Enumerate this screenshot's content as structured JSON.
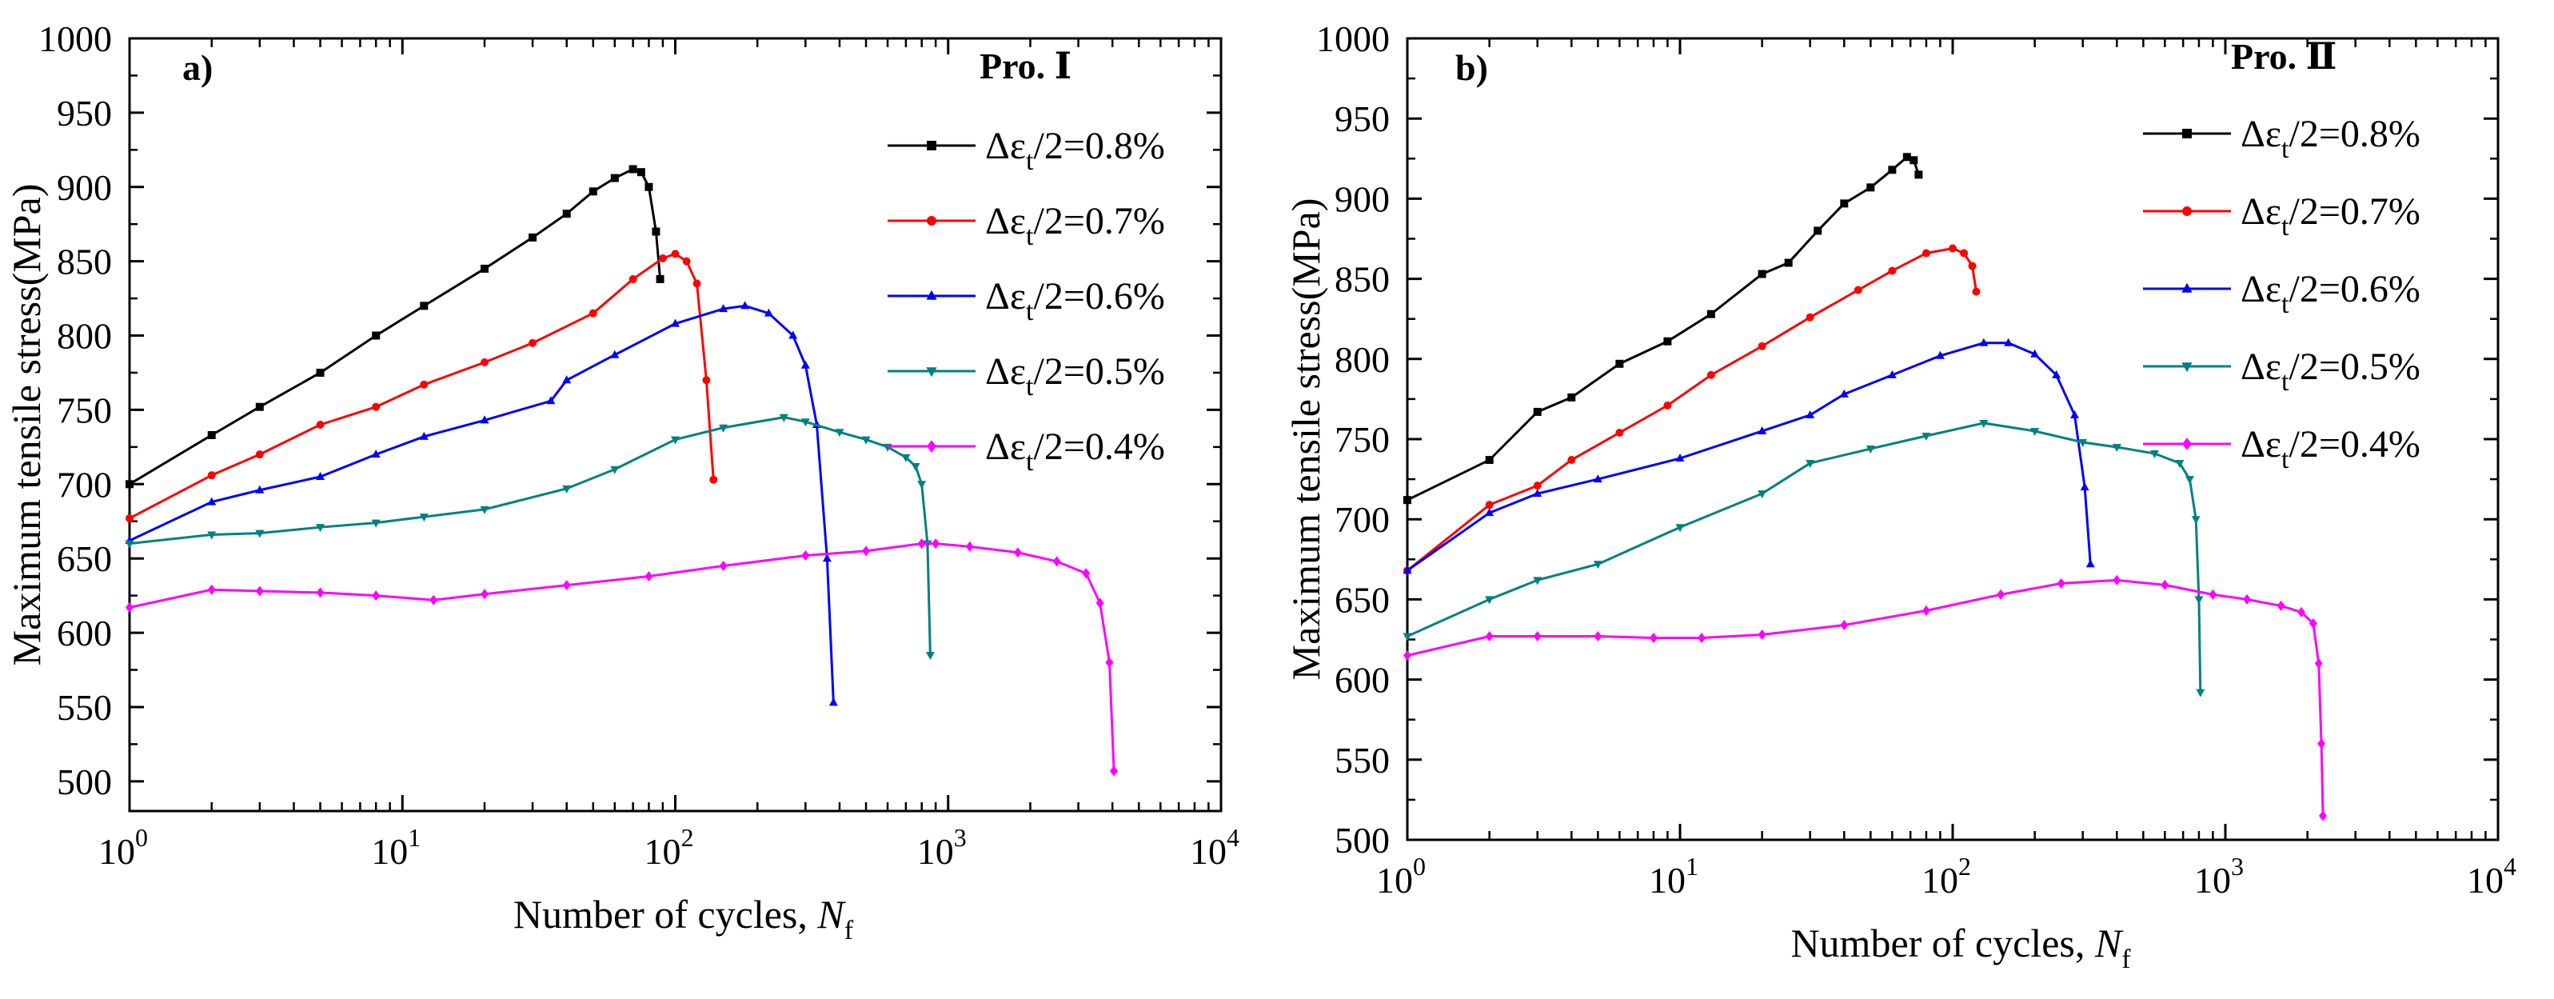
{
  "chart_data": [
    {
      "type": "line",
      "panel_label": "a)",
      "legend_title": "Pro. Ⅰ",
      "legend_placement": "top-right",
      "xlabel": "Number of cycles, N_f",
      "xlabel_main": "Number of cycles, ",
      "xlabel_italic": "N",
      "xlabel_sub": "f",
      "ylabel": "Maximum tensile stress(MPa)",
      "xscale": "log",
      "xlim": [
        1,
        10000
      ],
      "ylim": [
        480,
        1000
      ],
      "x_ticks": [
        {
          "value": 1,
          "base": "10",
          "exp": "0"
        },
        {
          "value": 10,
          "base": "10",
          "exp": "1"
        },
        {
          "value": 100,
          "base": "10",
          "exp": "2"
        },
        {
          "value": 1000,
          "base": "10",
          "exp": "3"
        },
        {
          "value": 10000,
          "base": "10",
          "exp": "4"
        }
      ],
      "y_ticks": [
        500,
        550,
        600,
        650,
        700,
        750,
        800,
        850,
        900,
        950,
        1000
      ],
      "series": [
        {
          "name": "Δε_t/2=0.8%",
          "label_pre": "Δε",
          "label_sub": "t",
          "label_post": "/2=0.8%",
          "color": "#000000",
          "marker": "square",
          "x": [
            1,
            2,
            3,
            5,
            8,
            12,
            20,
            30,
            40,
            50,
            60,
            70,
            75,
            80,
            85,
            88
          ],
          "y": [
            700,
            733,
            752,
            775,
            800,
            820,
            845,
            866,
            882,
            897,
            906,
            912,
            910,
            900,
            870,
            838
          ]
        },
        {
          "name": "Δε_t/2=0.7%",
          "label_pre": "Δε",
          "label_sub": "t",
          "label_post": "/2=0.7%",
          "color": "#ff0000",
          "marker": "circle",
          "x": [
            1,
            2,
            3,
            5,
            8,
            12,
            20,
            30,
            50,
            70,
            90,
            100,
            110,
            120,
            130,
            138
          ],
          "y": [
            677,
            706,
            720,
            740,
            752,
            767,
            782,
            795,
            815,
            838,
            852,
            855,
            850,
            835,
            770,
            703
          ]
        },
        {
          "name": "Δε_t/2=0.6%",
          "label_pre": "Δε",
          "label_sub": "t",
          "label_post": "/2=0.6%",
          "color": "#0000ff",
          "marker": "triangle-up",
          "x": [
            1,
            2,
            3,
            5,
            8,
            12,
            20,
            35,
            40,
            60,
            100,
            150,
            180,
            220,
            270,
            300,
            330,
            360,
            380
          ],
          "y": [
            662,
            688,
            696,
            705,
            720,
            732,
            743,
            756,
            770,
            787,
            808,
            818,
            820,
            815,
            800,
            780,
            740,
            650,
            553
          ]
        },
        {
          "name": "Δε_t/2=0.5%",
          "label_pre": "Δε",
          "label_sub": "t",
          "label_post": "/2=0.5%",
          "color": "#008080",
          "marker": "triangle-down",
          "x": [
            1,
            2,
            3,
            5,
            8,
            12,
            20,
            40,
            60,
            100,
            150,
            250,
            300,
            400,
            500,
            600,
            700,
            760,
            800,
            840,
            860
          ],
          "y": [
            660,
            666,
            667,
            671,
            674,
            678,
            683,
            697,
            710,
            730,
            738,
            745,
            742,
            735,
            730,
            725,
            718,
            712,
            700,
            660,
            585
          ]
        },
        {
          "name": "Δε_t/2=0.4%",
          "label_pre": "Δε",
          "label_sub": "t",
          "label_post": "/2=0.4%",
          "color": "#ff00ff",
          "marker": "diamond",
          "x": [
            1,
            2,
            3,
            5,
            8,
            13,
            20,
            40,
            80,
            150,
            300,
            500,
            800,
            900,
            1200,
            1800,
            2500,
            3200,
            3600,
            3900,
            4050
          ],
          "y": [
            617,
            629,
            628,
            627,
            625,
            622,
            626,
            632,
            638,
            645,
            652,
            655,
            660,
            660,
            658,
            654,
            648,
            640,
            620,
            580,
            507
          ]
        }
      ]
    },
    {
      "type": "line",
      "panel_label": "b)",
      "legend_title": "Pro. Ⅱ",
      "legend_placement": "top-right",
      "xlabel": "Number of cycles, N_f",
      "xlabel_main": "Number of cycles, ",
      "xlabel_italic": "N",
      "xlabel_sub": "f",
      "ylabel": "Maximum tensile stress(MPa)",
      "xscale": "log",
      "xlim": [
        1,
        10000
      ],
      "ylim": [
        500,
        1000
      ],
      "x_ticks": [
        {
          "value": 1,
          "base": "10",
          "exp": "0"
        },
        {
          "value": 10,
          "base": "10",
          "exp": "1"
        },
        {
          "value": 100,
          "base": "10",
          "exp": "2"
        },
        {
          "value": 1000,
          "base": "10",
          "exp": "3"
        },
        {
          "value": 10000,
          "base": "10",
          "exp": "4"
        }
      ],
      "y_ticks": [
        500,
        550,
        600,
        650,
        700,
        750,
        800,
        850,
        900,
        950,
        1000
      ],
      "series": [
        {
          "name": "Δε_t/2=0.8%",
          "label_pre": "Δε",
          "label_sub": "t",
          "label_post": "/2=0.8%",
          "color": "#000000",
          "marker": "square",
          "x": [
            1,
            2,
            3,
            4,
            6,
            9,
            13,
            20,
            25,
            32,
            40,
            50,
            60,
            68,
            72,
            75
          ],
          "y": [
            712,
            737,
            767,
            776,
            797,
            811,
            828,
            853,
            860,
            880,
            897,
            907,
            918,
            926,
            924,
            915
          ]
        },
        {
          "name": "Δε_t/2=0.7%",
          "label_pre": "Δε",
          "label_sub": "t",
          "label_post": "/2=0.7%",
          "color": "#ff0000",
          "marker": "circle",
          "x": [
            1,
            2,
            3,
            4,
            6,
            9,
            13,
            20,
            30,
            45,
            60,
            80,
            100,
            110,
            118,
            122
          ],
          "y": [
            668,
            709,
            721,
            737,
            754,
            771,
            790,
            808,
            826,
            843,
            855,
            866,
            869,
            866,
            858,
            842
          ]
        },
        {
          "name": "Δε_t/2=0.6%",
          "label_pre": "Δε",
          "label_sub": "t",
          "label_post": "/2=0.6%",
          "color": "#0000ff",
          "marker": "triangle-up",
          "x": [
            1,
            2,
            3,
            5,
            10,
            20,
            30,
            40,
            60,
            90,
            130,
            160,
            200,
            240,
            280,
            305,
            320
          ],
          "y": [
            668,
            704,
            716,
            725,
            738,
            755,
            765,
            778,
            790,
            802,
            810,
            810,
            803,
            790,
            765,
            720,
            672
          ]
        },
        {
          "name": "Δε_t/2=0.5%",
          "label_pre": "Δε",
          "label_sub": "t",
          "label_post": "/2=0.5%",
          "color": "#008080",
          "marker": "triangle-down",
          "x": [
            1,
            2,
            3,
            5,
            10,
            20,
            30,
            50,
            80,
            130,
            200,
            300,
            400,
            550,
            680,
            740,
            780,
            800,
            810
          ],
          "y": [
            627,
            650,
            662,
            672,
            695,
            716,
            735,
            744,
            752,
            760,
            755,
            748,
            745,
            741,
            735,
            725,
            700,
            650,
            592
          ]
        },
        {
          "name": "Δε_t/2=0.4%",
          "label_pre": "Δε",
          "label_sub": "t",
          "label_post": "/2=0.4%",
          "color": "#ff00ff",
          "marker": "diamond",
          "x": [
            1,
            2,
            3,
            5,
            8,
            12,
            20,
            40,
            80,
            150,
            250,
            400,
            600,
            900,
            1200,
            1600,
            1900,
            2100,
            2200,
            2250,
            2280
          ],
          "y": [
            615,
            627,
            627,
            627,
            626,
            626,
            628,
            634,
            643,
            653,
            660,
            662,
            659,
            653,
            650,
            646,
            642,
            635,
            610,
            560,
            515
          ]
        }
      ]
    }
  ]
}
